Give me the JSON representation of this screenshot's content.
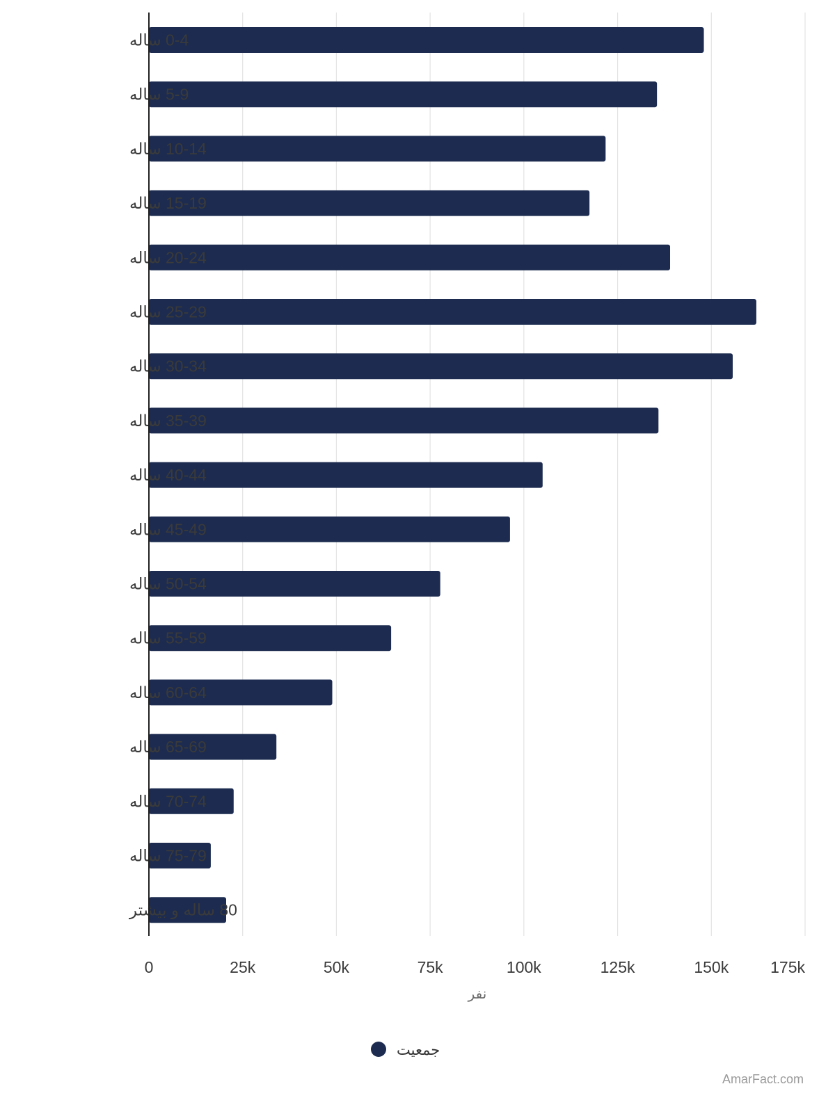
{
  "chart_data": {
    "type": "bar",
    "orientation": "horizontal",
    "categories": [
      "0-4 ساله",
      "5-9 ساله",
      "10-14 ساله",
      "15-19 ساله",
      "20-24 ساله",
      "25-29 ساله",
      "30-34 ساله",
      "35-39 ساله",
      "40-44 ساله",
      "45-49 ساله",
      "50-54 ساله",
      "55-59 ساله",
      "60-64 ساله",
      "65-69 ساله",
      "70-74 ساله",
      "75-79 ساله",
      "80 ساله و بیشتر"
    ],
    "series": [
      {
        "name": "جمعیت",
        "color": "#1c2b4f",
        "values": [
          148000,
          135500,
          121800,
          117500,
          139000,
          162000,
          155700,
          135900,
          105000,
          96300,
          77700,
          64600,
          48900,
          34000,
          22600,
          16500,
          20600
        ]
      }
    ],
    "xlim": [
      0,
      175000
    ],
    "x_ticks": [
      0,
      25000,
      50000,
      75000,
      100000,
      125000,
      150000,
      175000
    ],
    "x_tick_labels": [
      "0",
      "25k",
      "50k",
      "75k",
      "100k",
      "125k",
      "150k",
      "175k"
    ],
    "xlabel": "نفر",
    "ylabel": "",
    "grid": true,
    "legend_position": "bottom"
  },
  "watermark": "AmarFact.com",
  "colors": {
    "bar": "#1c2b4f",
    "grid": "#e3e3e3",
    "axis": "#222222"
  }
}
